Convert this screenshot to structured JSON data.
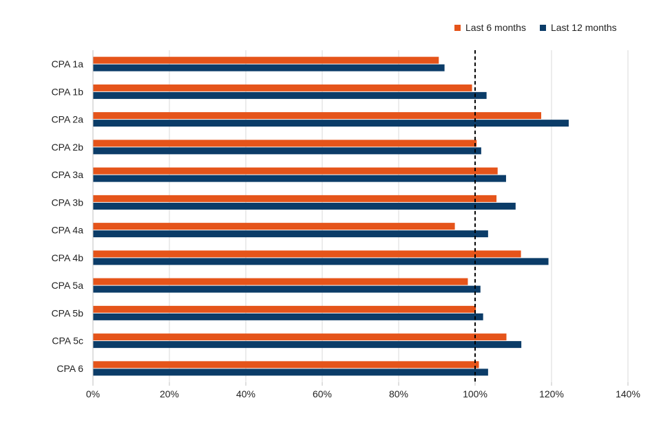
{
  "chart_data": {
    "type": "bar",
    "orientation": "horizontal",
    "categories": [
      "CPA 1a",
      "CPA 1b",
      "CPA 2a",
      "CPA 2b",
      "CPA 3a",
      "CPA 3b",
      "CPA 4a",
      "CPA 4b",
      "CPA 5a",
      "CPA 5b",
      "CPA 5c",
      "CPA 6"
    ],
    "series": [
      {
        "name": "Last 6 months",
        "color": "#e5541a",
        "values": [
          90.5,
          99.2,
          117.3,
          100.4,
          105.9,
          105.6,
          94.7,
          112.0,
          98.1,
          100.2,
          108.2,
          101.0
        ]
      },
      {
        "name": "Last 12 months",
        "color": "#0b3c68",
        "values": [
          92.0,
          103.0,
          124.5,
          101.6,
          108.1,
          110.6,
          103.4,
          119.2,
          101.4,
          102.1,
          112.1,
          103.4
        ]
      }
    ],
    "xlim": [
      0,
      140
    ],
    "xticks": [
      "0%",
      "20%",
      "40%",
      "60%",
      "80%",
      "100%",
      "120%",
      "140%"
    ],
    "reference_line": {
      "value": 100,
      "style": "dashed",
      "color": "#000000"
    },
    "grid": "vertical",
    "legend_position": "top-right",
    "title": "",
    "xlabel": "",
    "ylabel": ""
  }
}
